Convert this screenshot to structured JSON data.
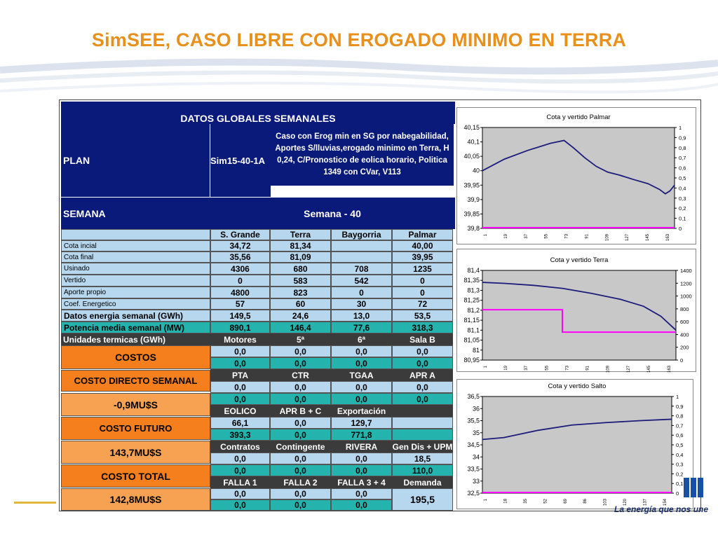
{
  "slide_title": "SimSEE, CASO LIBRE CON EROGADO MINIMO EN TERRA",
  "footer_tagline": "La energía que nos une",
  "colors": {
    "navy": "#0a1a7a",
    "light_blue": "#b6d7ee",
    "teal": "#25b3ad",
    "orange": "#f47f1c",
    "title": "#e8901c",
    "dark": "#3b3b3b",
    "plot_line": "#1c1c7a",
    "magenta": "#ff00ff"
  },
  "table": {
    "header": "DATOS GLOBALES SEMANALES",
    "plan_label": "PLAN",
    "plan_value": "Sim15-40-1A",
    "case_desc": "Caso con  Erog min en SG por nabegabilidad,  Aportes S/lluvias,erogado minimo en Terra,  H 0,24, C/Pronostico de eolica horario, Politica 1349 con CVar, V113",
    "semana_label": "SEMANA",
    "semana_value": "Semana - 40",
    "columns": [
      "S. Grande",
      "Terra",
      "Baygorria",
      "Palmar"
    ],
    "rows": [
      {
        "label": "Cota incial",
        "values": [
          "34,72",
          "81,34",
          "",
          "40,00"
        ]
      },
      {
        "label": "Cota final",
        "values": [
          "35,56",
          "81,09",
          "",
          "39,95"
        ]
      },
      {
        "label": "Usinado",
        "values": [
          "4306",
          "680",
          "708",
          "1235"
        ]
      },
      {
        "label": "Vertido",
        "values": [
          "0",
          "583",
          "542",
          "0"
        ]
      },
      {
        "label": "Aporte propio",
        "values": [
          "4800",
          "823",
          "0",
          "0"
        ]
      },
      {
        "label": "Coef. Energetico",
        "values": [
          "57",
          "60",
          "30",
          "72"
        ]
      },
      {
        "label": "Datos energia semanal  (GWh)",
        "values": [
          "149,5",
          "24,6",
          "13,0",
          "53,5"
        ]
      },
      {
        "label": "Potencia media semanal (MW)",
        "values": [
          "890,1",
          "146,4",
          "77,6",
          "318,3"
        ]
      }
    ],
    "termicas": {
      "label": "Unidades termicas (GWh)",
      "headers": [
        "Motores",
        "5ª",
        "6ª",
        "Sala B"
      ]
    },
    "costos_label": "COSTOS",
    "costos_rows": [
      [
        "0,0",
        "0,0",
        "0,0",
        "0,0"
      ],
      [
        "0,0",
        "0,0",
        "0,0",
        "0,0"
      ]
    ],
    "cds_label": "COSTO DIRECTO SEMANAL",
    "cds_value": "-0,9MU$S",
    "pta_headers": [
      "PTA",
      "CTR",
      "TGAA",
      "APR A"
    ],
    "pta_rows": [
      [
        "0,0",
        "0,0",
        "0,0",
        "0,0"
      ],
      [
        "0,0",
        "0,0",
        "0,0",
        "0,0"
      ]
    ],
    "cf_label": "COSTO FUTURO",
    "cf_value": "143,7MU$S",
    "eolico_headers": [
      "EOLICO",
      "APR B + C",
      "Exportación",
      ""
    ],
    "eolico_rows": [
      [
        "66,1",
        "0,0",
        "129,7",
        ""
      ],
      [
        "393,3",
        "0,0",
        "771,8",
        ""
      ]
    ],
    "contratos_headers": [
      "Contratos",
      "Contingente",
      "RIVERA",
      "Gen Dis + UPM"
    ],
    "contratos_rows": [
      [
        "0,0",
        "0,0",
        "0,0",
        "18,5"
      ],
      [
        "0,0",
        "0,0",
        "0,0",
        "110,0"
      ]
    ],
    "ct_label": "COSTO TOTAL",
    "ct_value": "142,8MU$S",
    "falla_headers": [
      "FALLA 1",
      "FALLA 2",
      "FALLA 3 + 4",
      "Demanda"
    ],
    "falla_rows": [
      [
        "0,0",
        "0,0",
        "0,0"
      ],
      [
        "0,0",
        "0,0",
        "0,0"
      ]
    ],
    "demanda_value": "195,5"
  },
  "chart_data": [
    {
      "type": "line",
      "title": "Cota y vertido Palmar",
      "ylim": [
        39.8,
        40.15
      ],
      "yticks": [
        "40,15",
        "40,1",
        "40,05",
        "40",
        "39,95",
        "39,9",
        "39,85",
        "39,8"
      ],
      "y2ticks": [
        "1",
        "0,9",
        "0,8",
        "0,7",
        "0,6",
        "0,5",
        "0,4",
        "0,3",
        "0,2",
        "0,1",
        "0"
      ],
      "xticks": [
        "1",
        "19",
        "37",
        "55",
        "73",
        "91",
        "109",
        "127",
        "145",
        "163"
      ],
      "xmax": 168,
      "series": [
        {
          "role": "cota",
          "points": [
            [
              1,
              40.0
            ],
            [
              20,
              40.04
            ],
            [
              40,
              40.07
            ],
            [
              60,
              40.095
            ],
            [
              72,
              40.105
            ],
            [
              80,
              40.08
            ],
            [
              90,
              40.045
            ],
            [
              100,
              40.015
            ],
            [
              110,
              39.995
            ],
            [
              120,
              39.985
            ],
            [
              132,
              39.97
            ],
            [
              145,
              39.955
            ],
            [
              155,
              39.935
            ],
            [
              160,
              39.92
            ],
            [
              164,
              39.93
            ],
            [
              168,
              39.95
            ]
          ]
        },
        {
          "role": "vertido",
          "points": [
            [
              1,
              0
            ],
            [
              168,
              0
            ]
          ]
        }
      ]
    },
    {
      "type": "line",
      "title": "Cota y vertido Terra",
      "ylim": [
        80.95,
        81.4
      ],
      "yticks": [
        "81,4",
        "81,35",
        "81,3",
        "81,25",
        "81,2",
        "81,15",
        "81,1",
        "81,05",
        "81",
        "80,95"
      ],
      "y2ticks": [
        "1400",
        "1200",
        "1000",
        "800",
        "600",
        "400",
        "200",
        "0"
      ],
      "y2max": 1400,
      "xticks": [
        "1",
        "19",
        "37",
        "55",
        "73",
        "91",
        "109",
        "127",
        "145",
        "163"
      ],
      "xmax": 168,
      "series": [
        {
          "role": "cota",
          "points": [
            [
              1,
              81.34
            ],
            [
              20,
              81.335
            ],
            [
              45,
              81.325
            ],
            [
              70,
              81.31
            ],
            [
              95,
              81.285
            ],
            [
              120,
              81.255
            ],
            [
              140,
              81.22
            ],
            [
              155,
              81.17
            ],
            [
              168,
              81.1
            ]
          ]
        },
        {
          "role": "vertido",
          "points": [
            [
              1,
              775
            ],
            [
              70,
              775
            ],
            [
              70,
              425
            ],
            [
              168,
              425
            ]
          ]
        }
      ]
    },
    {
      "type": "line",
      "title": "Cota y vertido Salto",
      "ylim": [
        32.5,
        36.5
      ],
      "yticks": [
        "36,5",
        "36",
        "35,5",
        "35",
        "34,5",
        "34",
        "33,5",
        "33",
        "32,5"
      ],
      "y2ticks": [
        "1",
        "0,9",
        "0,8",
        "0,7",
        "0,6",
        "0,5",
        "0,4",
        "0,3",
        "0,2",
        "0,1",
        "0"
      ],
      "xticks": [
        "1",
        "18",
        "35",
        "52",
        "69",
        "86",
        "103",
        "120",
        "137",
        "154"
      ],
      "xmax": 168,
      "series": [
        {
          "role": "cota",
          "points": [
            [
              1,
              34.72
            ],
            [
              20,
              34.8
            ],
            [
              50,
              35.1
            ],
            [
              80,
              35.32
            ],
            [
              110,
              35.42
            ],
            [
              140,
              35.5
            ],
            [
              168,
              35.56
            ]
          ]
        },
        {
          "role": "vertido",
          "points": [
            [
              1,
              0
            ],
            [
              168,
              0
            ]
          ]
        }
      ]
    }
  ]
}
